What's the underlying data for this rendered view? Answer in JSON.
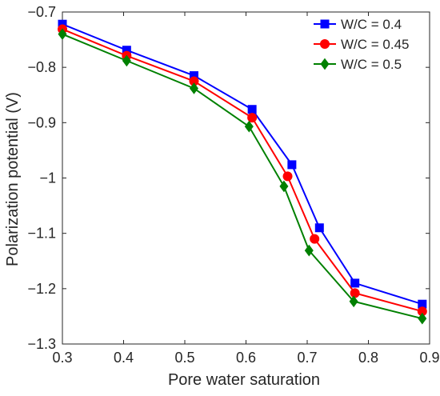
{
  "chart_data": {
    "type": "line",
    "xlabel": "Pore water saturation",
    "ylabel": "Polarization potential (V)",
    "xlim": [
      0.3,
      0.9
    ],
    "ylim": [
      -1.3,
      -0.7
    ],
    "xticks": [
      "0.3",
      "0.4",
      "0.5",
      "0.6",
      "0.7",
      "0.8",
      "0.9"
    ],
    "yticks": [
      "-0.7",
      "-0.8",
      "-0.9",
      "-1",
      "-1.1",
      "-1.2",
      "-1.3"
    ],
    "grid": false,
    "legend_position": "top-right",
    "series": [
      {
        "name": "W/C = 0.4",
        "color": "#0000ff",
        "marker": "square",
        "x": [
          0.3,
          0.405,
          0.515,
          0.61,
          0.675,
          0.72,
          0.778,
          0.888
        ],
        "y": [
          -0.722,
          -0.769,
          -0.815,
          -0.876,
          -0.976,
          -1.09,
          -1.19,
          -1.228
        ]
      },
      {
        "name": "W/C = 0.45",
        "color": "#ff0000",
        "marker": "circle",
        "x": [
          0.3,
          0.405,
          0.515,
          0.61,
          0.668,
          0.712,
          0.778,
          0.888
        ],
        "y": [
          -0.731,
          -0.779,
          -0.825,
          -0.891,
          -0.997,
          -1.11,
          -1.208,
          -1.241
        ]
      },
      {
        "name": "W/C = 0.5",
        "color": "#008000",
        "marker": "diamond",
        "x": [
          0.3,
          0.405,
          0.515,
          0.605,
          0.662,
          0.703,
          0.776,
          0.888
        ],
        "y": [
          -0.74,
          -0.788,
          -0.838,
          -0.907,
          -1.015,
          -1.131,
          -1.223,
          -1.254
        ]
      }
    ]
  }
}
